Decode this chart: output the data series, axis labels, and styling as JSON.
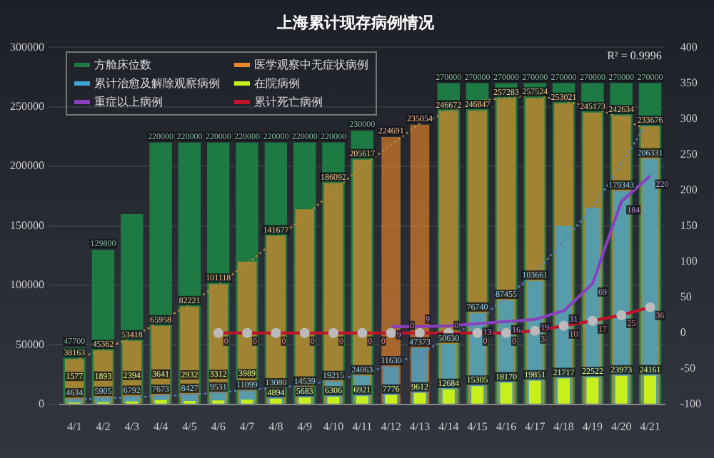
{
  "chart_data": {
    "type": "bar",
    "title": "上海累计现存病例情况",
    "categories": [
      "4/1",
      "4/2",
      "4/3",
      "4/4",
      "4/5",
      "4/6",
      "4/7",
      "4/8",
      "4/9",
      "4/10",
      "4/11",
      "4/12",
      "4/13",
      "4/14",
      "4/15",
      "4/16",
      "4/17",
      "4/18",
      "4/19",
      "4/20",
      "4/21"
    ],
    "series": [
      {
        "name": "方舱床位数",
        "color": "#1e7a43",
        "values": [
          47700,
          129800,
          160000,
          220000,
          220000,
          220000,
          220000,
          220000,
          220000,
          220000,
          230000,
          null,
          null,
          270000,
          270000,
          270000,
          270000,
          270000,
          270000,
          270000,
          270000
        ],
        "value_labels": [
          "47700",
          "129800",
          null,
          "220000",
          "220000",
          "220000",
          "220000",
          "220000",
          "220000",
          "220000",
          "230000",
          null,
          null,
          "270000",
          "270000",
          "270000",
          "270000",
          "270000",
          "270000",
          "270000",
          "270000"
        ]
      },
      {
        "name": "医学观察中无症状病例",
        "color": "#f0892a",
        "values": [
          38163,
          45362,
          53418,
          65958,
          82221,
          101118,
          120000,
          141677,
          164000,
          186092,
          205617,
          224691,
          235054,
          246672,
          246847,
          257283,
          257524,
          253021,
          245173,
          242634,
          233676
        ],
        "value_labels": [
          "38163",
          "45362",
          "53418",
          "65958",
          "82221",
          "101118",
          null,
          "141677",
          null,
          "186092",
          "205617",
          "224691",
          "235054",
          "246672",
          "246847",
          "257283",
          "257524",
          "253021",
          "245173",
          "242634",
          "233676"
        ]
      },
      {
        "name": "累计治愈及解除观察病例",
        "color": "#3aa6d8",
        "values": [
          4634,
          5905,
          6792,
          7673,
          8427,
          9531,
          11099,
          13080,
          14539,
          19215,
          24063,
          31630,
          47373,
          50630,
          76740,
          87455,
          103661,
          150000,
          165000,
          179343,
          206331
        ],
        "value_labels": [
          "4634",
          "5905",
          "6792",
          "7673",
          "8427",
          "9531",
          "11099",
          "13080",
          "14539",
          "19215",
          "24063",
          "31630",
          "47373",
          "50630",
          "76740",
          "87455",
          "103661",
          null,
          null,
          "179343",
          "206331"
        ]
      },
      {
        "name": "在院病例",
        "color": "#c6ef1c",
        "values": [
          1577,
          1893,
          2394,
          3641,
          2932,
          3312,
          3989,
          4894,
          5683,
          6306,
          6921,
          7776,
          9612,
          12684,
          15305,
          18170,
          19851,
          21717,
          22522,
          23973,
          24161
        ],
        "value_labels": [
          "1577",
          "1893",
          "2394",
          "3641",
          "2932",
          "3312",
          "3989",
          "4894",
          "5683",
          "6306",
          "6921",
          "7776",
          "9612",
          "12684",
          "15305",
          "18170",
          "19851",
          "21717",
          "22522",
          "23973",
          "24161"
        ]
      },
      {
        "name": "重症以上病例",
        "type": "line",
        "axis": "y2",
        "marker": "none",
        "color": "#8a3fc0",
        "values": [
          null,
          null,
          null,
          null,
          null,
          null,
          null,
          null,
          null,
          null,
          null,
          9,
          9,
          10,
          13,
          16,
          19,
          31,
          69,
          184,
          220
        ],
        "value_labels": [
          null,
          null,
          null,
          null,
          null,
          null,
          null,
          null,
          null,
          null,
          null,
          "9",
          "9",
          null,
          "13",
          "16",
          "19",
          "31",
          "69",
          "184",
          "220"
        ]
      },
      {
        "name": "累计死亡病例",
        "type": "line",
        "axis": "y2",
        "marker": "circle",
        "color": "#c0142a",
        "values": [
          null,
          null,
          null,
          null,
          null,
          0,
          0,
          0,
          0,
          0,
          0,
          0,
          0,
          0,
          0,
          0,
          3,
          10,
          17,
          25,
          36
        ],
        "value_labels": [
          null,
          null,
          null,
          null,
          null,
          "0",
          "0",
          "0",
          "0",
          "0",
          "0",
          "0",
          "0",
          "0",
          "0",
          "0",
          "3",
          "10",
          "17",
          "25",
          "36"
        ]
      },
      {
        "type": "line",
        "marker": "none",
        "line_style": "dotted",
        "color": "#b08a3a",
        "values": [
          37000,
          null,
          56000,
          null,
          84000,
          null,
          118000,
          null,
          158000,
          null,
          200000,
          null,
          236000,
          null,
          255000,
          null,
          260000,
          null,
          250000,
          null,
          230000
        ]
      },
      {
        "type": "line",
        "marker": "none",
        "line_style": "dotted",
        "color": "#5a7fc0",
        "values": [
          4000,
          null,
          null,
          null,
          8000,
          null,
          null,
          null,
          16000,
          null,
          25000,
          null,
          42000,
          null,
          70000,
          null,
          110000,
          null,
          165000,
          null,
          240000
        ]
      }
    ],
    "ylim": [
      0,
      300000
    ],
    "yticks": [
      0,
      50000,
      100000,
      150000,
      200000,
      250000,
      300000
    ],
    "y2lim": [
      -100,
      400
    ],
    "y2ticks": [
      -100,
      -50,
      0,
      50,
      100,
      150,
      200,
      250,
      300,
      350,
      400
    ],
    "grid": "y",
    "legend": "top left",
    "annotations": [
      "R² = 0.9996"
    ]
  }
}
